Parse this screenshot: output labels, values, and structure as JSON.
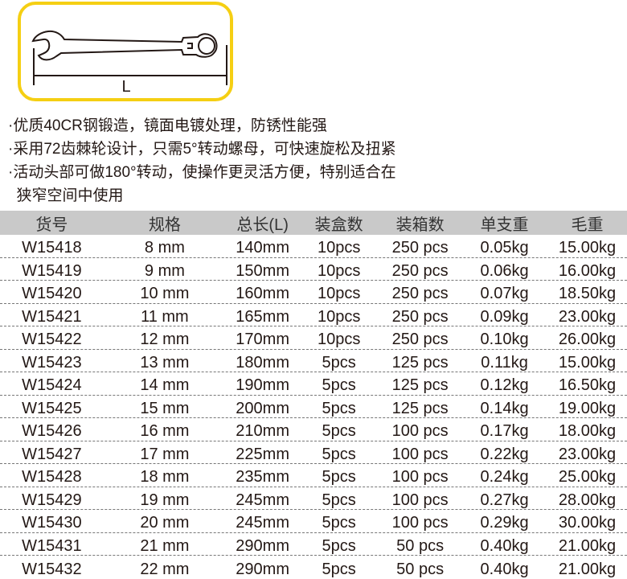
{
  "figure": {
    "dimension_label": "L",
    "border_color": "#f5cf13"
  },
  "features": [
    "·优质40CR钢锻造，镜面电镀处理，防锈性能强",
    "·采用72齿棘轮设计，只需5°转动螺母，可快速旋松及扭紧",
    "·活动头部可做180°转动，使操作更灵活方便，特别适合在",
    "  狭窄空间中使用"
  ],
  "table": {
    "headers": [
      "货号",
      "规格",
      "总长(L)",
      "装盒数",
      "装箱数",
      "单支重",
      "毛重"
    ],
    "rows": [
      [
        "W15418",
        "8 mm",
        "140mm",
        "10pcs",
        "250 pcs",
        "0.05kg",
        "15.00kg"
      ],
      [
        "W15419",
        "9 mm",
        "150mm",
        "10pcs",
        "250 pcs",
        "0.06kg",
        "16.00kg"
      ],
      [
        "W15420",
        "10 mm",
        "160mm",
        "10pcs",
        "250 pcs",
        "0.07kg",
        "18.50kg"
      ],
      [
        "W15421",
        "11 mm",
        "165mm",
        "10pcs",
        "250 pcs",
        "0.09kg",
        "23.00kg"
      ],
      [
        "W15422",
        "12 mm",
        "170mm",
        "10pcs",
        "250 pcs",
        "0.10kg",
        "26.00kg"
      ],
      [
        "W15423",
        "13 mm",
        "180mm",
        "5pcs",
        "125 pcs",
        "0.11kg",
        "15.00kg"
      ],
      [
        "W15424",
        "14 mm",
        "190mm",
        "5pcs",
        "125 pcs",
        "0.12kg",
        "16.50kg"
      ],
      [
        "W15425",
        "15 mm",
        "200mm",
        "5pcs",
        "125 pcs",
        "0.14kg",
        "19.00kg"
      ],
      [
        "W15426",
        "16 mm",
        "210mm",
        "5pcs",
        "100 pcs",
        "0.17kg",
        "18.00kg"
      ],
      [
        "W15427",
        "17 mm",
        "225mm",
        "5pcs",
        "100 pcs",
        "0.22kg",
        "23.00kg"
      ],
      [
        "W15428",
        "18 mm",
        "235mm",
        "5pcs",
        "100 pcs",
        "0.24kg",
        "25.00kg"
      ],
      [
        "W15429",
        "19 mm",
        "245mm",
        "5pcs",
        "100 pcs",
        "0.27kg",
        "28.00kg"
      ],
      [
        "W15430",
        "20 mm",
        "245mm",
        "5pcs",
        "100 pcs",
        "0.29kg",
        "30.00kg"
      ],
      [
        "W15431",
        "21 mm",
        "290mm",
        "5pcs",
        "50 pcs",
        "0.40kg",
        "21.00kg"
      ],
      [
        "W15432",
        "22 mm",
        "290mm",
        "5pcs",
        "50 pcs",
        "0.40kg",
        "21.00kg"
      ]
    ]
  }
}
